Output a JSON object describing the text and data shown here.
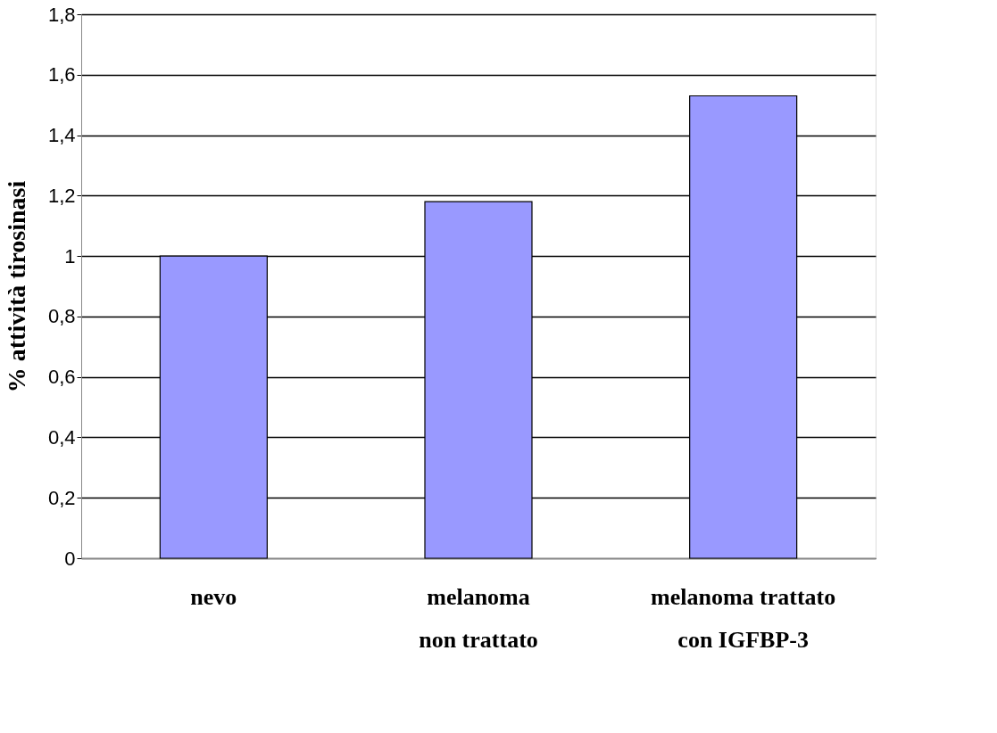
{
  "chart_data": {
    "type": "bar",
    "ylabel": "% attività tirosinasi",
    "categories": [
      "nevo",
      "melanoma\nnon trattato",
      "melanoma trattato\ncon IGFBP-3"
    ],
    "values": [
      1.0,
      1.18,
      1.53
    ],
    "color": "#9999ff",
    "ylim": [
      0,
      1.8
    ],
    "yticks": [
      0,
      {
        "value": 0.2,
        "label": "0,2"
      },
      {
        "value": 0.4,
        "label": "0,4"
      },
      {
        "value": 0.6,
        "label": "0,6"
      },
      {
        "value": 0.8,
        "label": "0,8"
      },
      1,
      {
        "value": 1.2,
        "label": "1,2"
      },
      {
        "value": 1.4,
        "label": "1,4"
      },
      {
        "value": 1.6,
        "label": "1,6"
      },
      {
        "value": 1.8,
        "label": "1,8"
      }
    ],
    "grid": "y"
  }
}
